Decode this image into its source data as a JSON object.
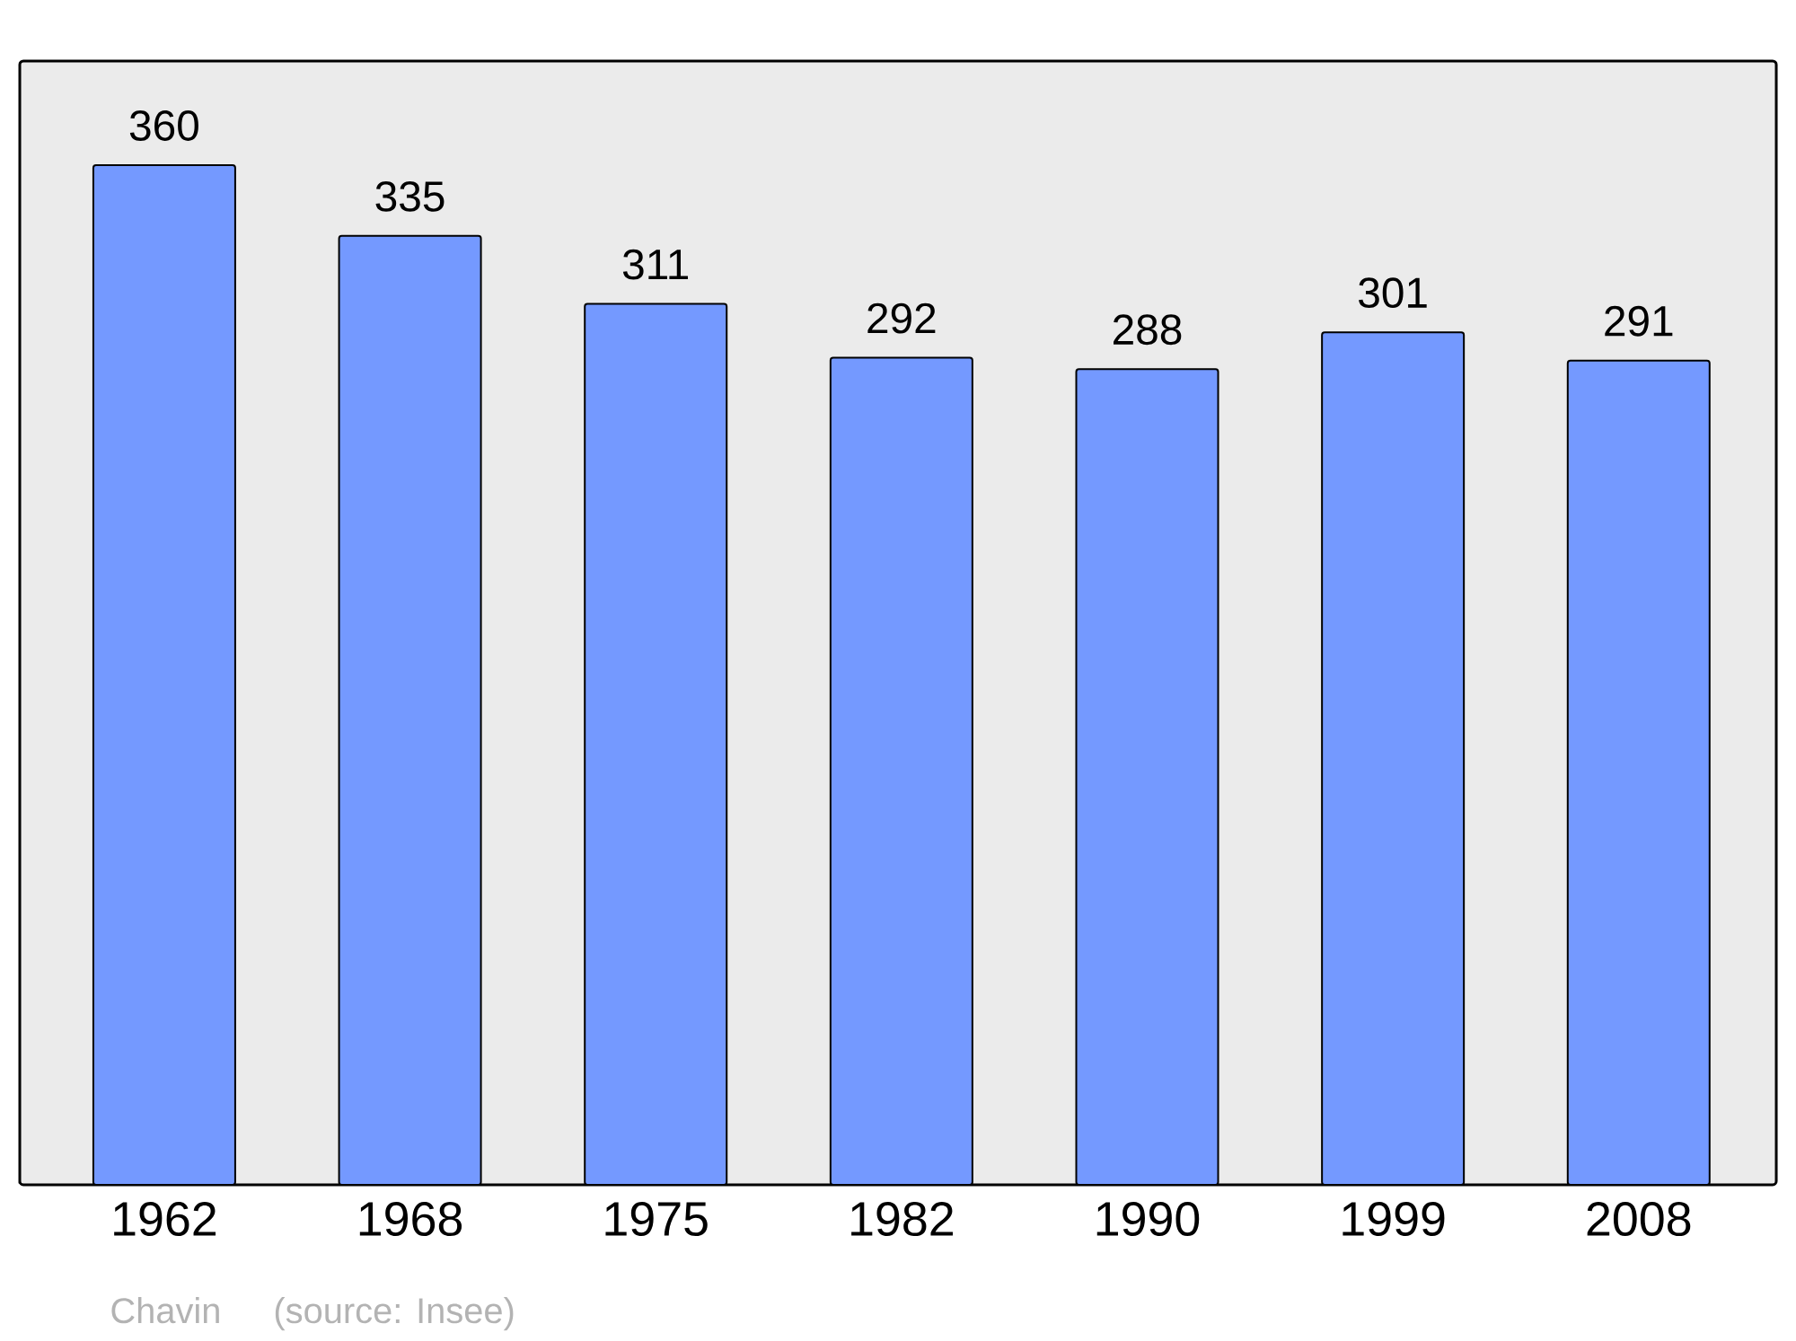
{
  "chart_data": {
    "type": "bar",
    "categories": [
      "1962",
      "1968",
      "1975",
      "1982",
      "1990",
      "1999",
      "2008"
    ],
    "values": [
      360,
      335,
      311,
      292,
      288,
      301,
      291
    ],
    "color": "#7499ff",
    "data_labels": true,
    "annotations": [
      "Chavin",
      "(source: Insee)"
    ]
  }
}
